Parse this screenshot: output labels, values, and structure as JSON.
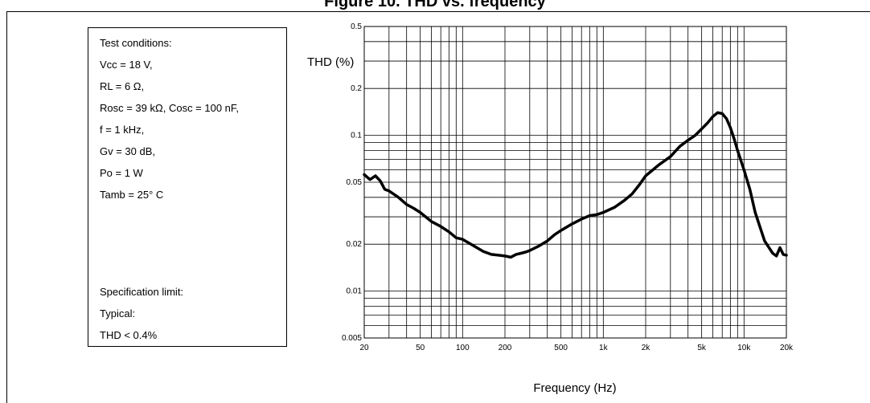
{
  "title": "Figure 10. THD vs. frequency",
  "conditions": {
    "lines": [
      "Test conditions:",
      "Vcc = 18 V,",
      "RL = 6 Ω,",
      "Rosc = 39 kΩ, Cosc = 100 nF,",
      "f = 1 kHz,",
      "Gv = 30 dB,",
      "Po = 1 W",
      "Tamb = 25° C"
    ],
    "spec_lines": [
      "Specification limit:",
      "Typical:",
      "THD < 0.4%"
    ]
  },
  "chart_data": {
    "type": "line",
    "x_scale": "log",
    "y_scale": "log",
    "xlim": [
      20,
      20000
    ],
    "ylim": [
      0.005,
      0.5
    ],
    "xlabel": "Frequency (Hz)",
    "ylabel": "THD (%)",
    "x_ticks": [
      {
        "value": 20,
        "label": "20"
      },
      {
        "value": 50,
        "label": "50"
      },
      {
        "value": 100,
        "label": "100"
      },
      {
        "value": 200,
        "label": "200"
      },
      {
        "value": 500,
        "label": "500"
      },
      {
        "value": 1000,
        "label": "1k"
      },
      {
        "value": 2000,
        "label": "2k"
      },
      {
        "value": 5000,
        "label": "5k"
      },
      {
        "value": 10000,
        "label": "10k"
      },
      {
        "value": 20000,
        "label": "20k"
      }
    ],
    "y_ticks": [
      {
        "value": 0.5,
        "label": "0.5"
      },
      {
        "value": 0.2,
        "label": "0.2"
      },
      {
        "value": 0.1,
        "label": "0.1"
      },
      {
        "value": 0.05,
        "label": "0.05"
      },
      {
        "value": 0.02,
        "label": "0.02"
      },
      {
        "value": 0.01,
        "label": "0.01"
      },
      {
        "value": 0.005,
        "label": "0.005"
      }
    ],
    "grid": true,
    "line_color": "#000000",
    "series": [
      {
        "x": [
          20,
          22,
          24,
          26,
          28,
          30,
          35,
          40,
          45,
          50,
          60,
          70,
          80,
          90,
          100,
          120,
          140,
          160,
          180,
          200,
          220,
          240,
          260,
          280,
          300,
          350,
          400,
          450,
          500,
          600,
          700,
          800,
          900,
          1000,
          1200,
          1400,
          1600,
          1800,
          2000,
          2500,
          3000,
          3500,
          4000,
          4500,
          5000,
          5500,
          6000,
          6500,
          7000,
          7500,
          8000,
          8500,
          9000,
          10000,
          11000,
          12000,
          14000,
          16000,
          17000,
          18000,
          19000,
          20000
        ],
        "y": [
          0.056,
          0.052,
          0.055,
          0.051,
          0.045,
          0.044,
          0.04,
          0.036,
          0.034,
          0.032,
          0.028,
          0.026,
          0.024,
          0.022,
          0.0215,
          0.0195,
          0.018,
          0.0172,
          0.017,
          0.0168,
          0.0165,
          0.0172,
          0.0175,
          0.0178,
          0.0182,
          0.0195,
          0.021,
          0.023,
          0.0245,
          0.027,
          0.029,
          0.0305,
          0.031,
          0.032,
          0.0345,
          0.038,
          0.042,
          0.048,
          0.055,
          0.065,
          0.073,
          0.085,
          0.093,
          0.1,
          0.11,
          0.12,
          0.132,
          0.14,
          0.138,
          0.128,
          0.112,
          0.095,
          0.08,
          0.06,
          0.045,
          0.032,
          0.021,
          0.0175,
          0.0168,
          0.019,
          0.0172,
          0.017
        ]
      }
    ]
  }
}
